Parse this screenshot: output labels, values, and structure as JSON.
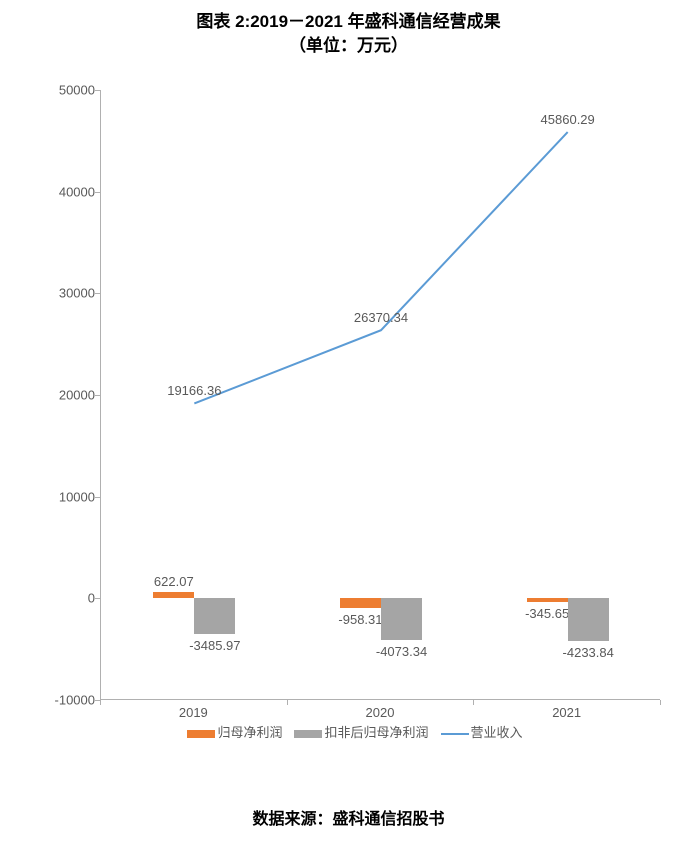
{
  "title_line1": "图表 2:2019－2021 年盛科通信经营成果",
  "title_line2": "（单位：万元）",
  "title_fontsize": 17,
  "source": "数据来源：盛科通信招股书",
  "chart": {
    "type": "bar+line",
    "background_color": "#ffffff",
    "axis_color": "#b0b0b0",
    "text_color": "#595959",
    "label_fontsize": 13,
    "ylim": [
      -10000,
      50000
    ],
    "ytick_step": 10000,
    "yticks": [
      "-10000",
      "0",
      "10000",
      "20000",
      "30000",
      "40000",
      "50000"
    ],
    "categories": [
      "2019",
      "2020",
      "2021"
    ],
    "bar_group_width": 0.5,
    "bar_width": 0.22,
    "series": [
      {
        "name": "归母净利润",
        "type": "bar",
        "color": "#ed7d31",
        "values": [
          622.07,
          -958.31,
          -345.65
        ],
        "labels": [
          "622.07",
          "-958.31",
          "-345.65"
        ]
      },
      {
        "name": "扣非后归母净利润",
        "type": "bar",
        "color": "#a5a5a5",
        "values": [
          -3485.97,
          -4073.34,
          -4233.84
        ],
        "labels": [
          "-3485.97",
          "-4073.34",
          "-4233.84"
        ]
      },
      {
        "name": "营业收入",
        "type": "line",
        "color": "#5b9bd5",
        "line_width": 2,
        "values": [
          19166.36,
          26370.34,
          45860.29
        ],
        "labels": [
          "19166.36",
          "26370.34",
          "45860.29"
        ]
      }
    ]
  }
}
